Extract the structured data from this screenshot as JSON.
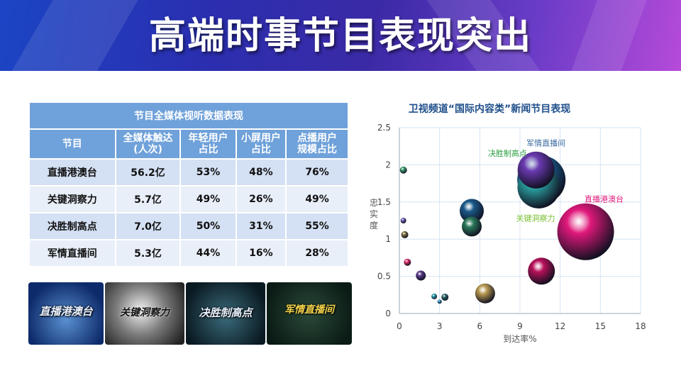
{
  "header": {
    "title": "高端时事节目表现突出"
  },
  "table": {
    "caption": "节目全媒体视听数据表现",
    "headers": [
      {
        "line1": "节目",
        "line2": ""
      },
      {
        "line1": "全媒体触达",
        "line2": "(人次)"
      },
      {
        "line1": "年轻用户",
        "line2": "占比"
      },
      {
        "line1": "小屏用户",
        "line2": "占比"
      },
      {
        "line1": "点播用户",
        "line2": "规模占比"
      }
    ],
    "rows": [
      [
        "直播港澳台",
        "56.2亿",
        "53%",
        "48%",
        "76%"
      ],
      [
        "关键洞察力",
        "5.7亿",
        "49%",
        "26%",
        "49%"
      ],
      [
        "决胜制高点",
        "7.0亿",
        "50%",
        "31%",
        "55%"
      ],
      [
        "军情直播间",
        "5.3亿",
        "44%",
        "16%",
        "28%"
      ]
    ]
  },
  "thumbnails": [
    {
      "name": "直播港澳台",
      "text": "直播港澳台"
    },
    {
      "name": "关键洞察力",
      "text": "关键洞察力"
    },
    {
      "name": "决胜制高点",
      "text": "决胜制高点"
    },
    {
      "name": "军情直播间",
      "text": "军情直播间"
    }
  ],
  "chart_data": {
    "type": "scatter",
    "title": "卫视频道“国际内容类”新闻节目表现",
    "xlabel": "到达率%",
    "ylabel": "忠实度",
    "xlim": [
      0,
      18
    ],
    "ylim": [
      0,
      2.5
    ],
    "xticks": [
      0,
      3,
      6,
      9,
      12,
      15,
      18
    ],
    "yticks": [
      0,
      0.5,
      1,
      1.5,
      2,
      2.5
    ],
    "grid": true,
    "points": [
      {
        "x": 0.3,
        "y": 1.93,
        "size": 5,
        "color": "#3a9a6a",
        "label": ""
      },
      {
        "x": 0.3,
        "y": 1.25,
        "size": 4,
        "color": "#6a5ab0",
        "label": ""
      },
      {
        "x": 0.4,
        "y": 1.06,
        "size": 5,
        "color": "#7a7040",
        "label": ""
      },
      {
        "x": 0.6,
        "y": 0.69,
        "size": 5,
        "color": "#e0306a",
        "label": ""
      },
      {
        "x": 1.6,
        "y": 0.51,
        "size": 7,
        "color": "#5a3a8a",
        "label": ""
      },
      {
        "x": 2.6,
        "y": 0.23,
        "size": 4,
        "color": "#2aa0b0",
        "label": ""
      },
      {
        "x": 3.0,
        "y": 0.16,
        "size": 3,
        "color": "#2a90c0",
        "label": ""
      },
      {
        "x": 3.4,
        "y": 0.22,
        "size": 5,
        "color": "#2a6a6a",
        "label": ""
      },
      {
        "x": 6.4,
        "y": 0.27,
        "size": 14,
        "color": "#b89a50",
        "label": ""
      },
      {
        "x": 10.6,
        "y": 0.57,
        "size": 19,
        "color": "#b8105a",
        "label": ""
      },
      {
        "x": 5.4,
        "y": 1.38,
        "size": 17,
        "color": "#1a5a8a",
        "label": ""
      },
      {
        "x": 5.4,
        "y": 1.17,
        "size": 14,
        "color": "#2a7a5a",
        "label": "关键洞察力"
      },
      {
        "x": 13.9,
        "y": 1.1,
        "size": 40,
        "color": "#e0187a",
        "label": "直播港澳台"
      },
      {
        "x": 10.6,
        "y": 1.8,
        "size": 34,
        "color": "#1a6aa0",
        "label": ""
      },
      {
        "x": 10.4,
        "y": 1.7,
        "size": 30,
        "color": "#2aa0a0",
        "label": "决胜制高点"
      },
      {
        "x": 10.2,
        "y": 1.93,
        "size": 26,
        "color": "#6a3ab0",
        "label": "军情直播间"
      }
    ],
    "label_colors": {
      "直播港澳台": "#e0187a",
      "关键洞察力": "#7ac030",
      "决胜制高点": "#2aa040",
      "军情直播间": "#3a6aa0"
    }
  }
}
